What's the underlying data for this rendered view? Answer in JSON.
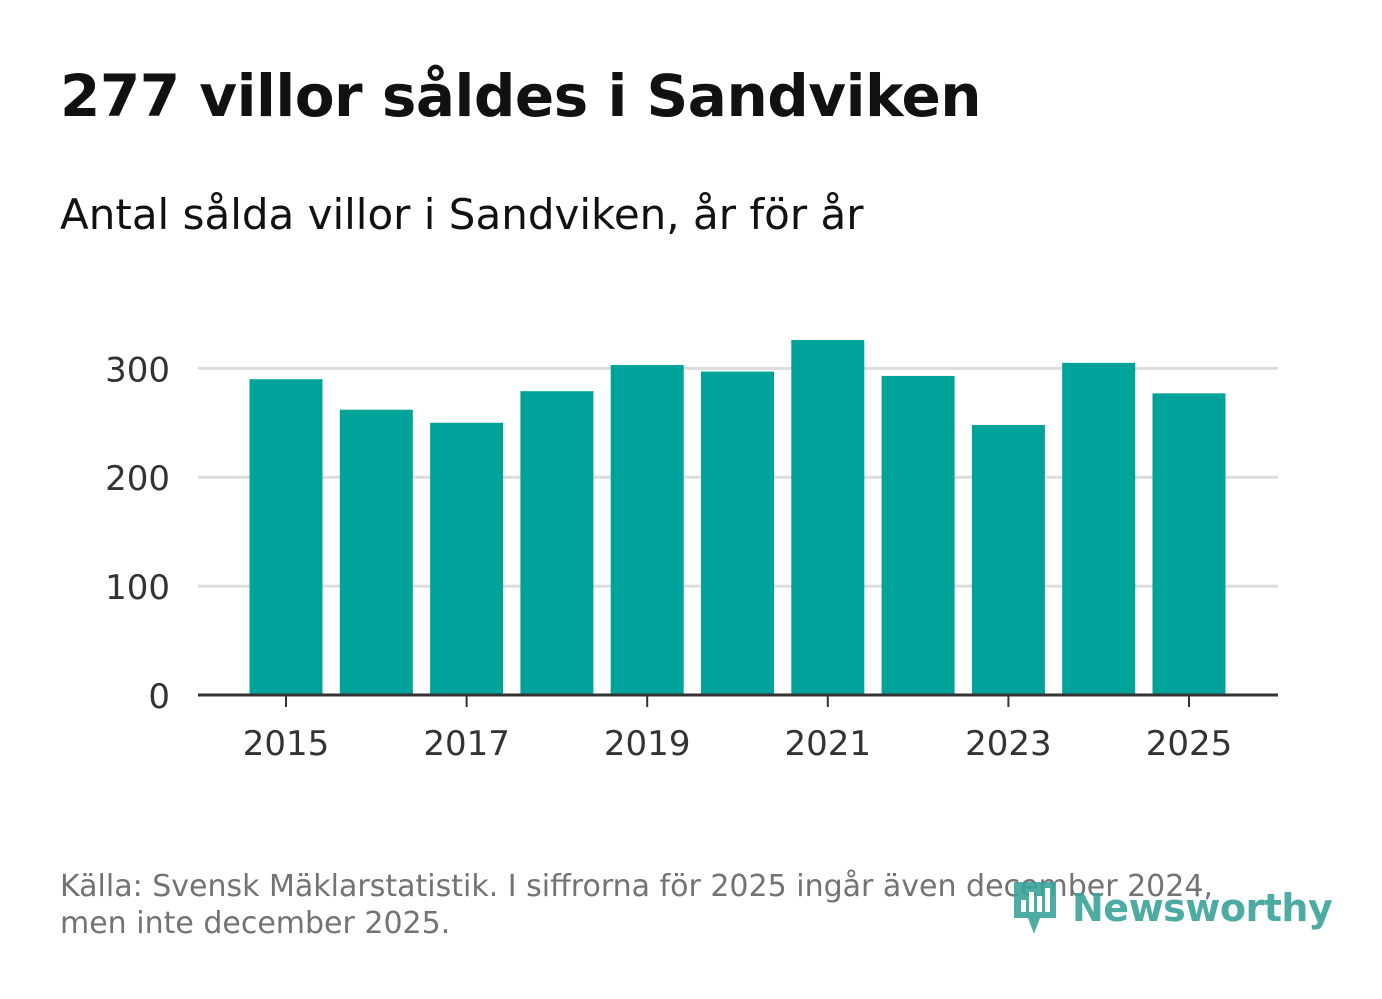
{
  "title": "277 villor såldes i Sandviken",
  "subtitle": "Antal sålda villor i Sandviken, år för år",
  "source_line1": "Källa: Svensk Mäklarstatistik. I siffrorna för 2025 ingår även december 2024,",
  "source_line2": "men inte december 2025.",
  "logo": {
    "icon": "newsworthy-icon",
    "text": "Newsworthy"
  },
  "colors": {
    "bar": "#00a39a",
    "grid": "#dddddd",
    "axis": "#333333",
    "tick_text": "#333333",
    "logo": "#3aa39a"
  },
  "chart_data": {
    "type": "bar",
    "title": "277 villor såldes i Sandviken",
    "subtitle": "Antal sålda villor i Sandviken, år för år",
    "xlabel": "",
    "ylabel": "",
    "categories": [
      2015,
      2016,
      2017,
      2018,
      2019,
      2020,
      2021,
      2022,
      2023,
      2024,
      2025
    ],
    "values": [
      290,
      262,
      250,
      279,
      303,
      297,
      326,
      293,
      248,
      305,
      277
    ],
    "ylim": [
      0,
      326
    ],
    "yticks": [
      0,
      100,
      200,
      300
    ],
    "xticks": [
      2015,
      2017,
      2019,
      2021,
      2023,
      2025
    ],
    "grid": true,
    "legend": "none"
  }
}
